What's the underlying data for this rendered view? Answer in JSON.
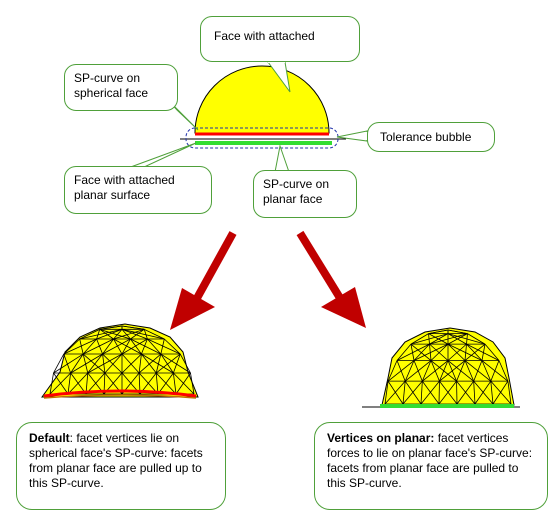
{
  "callouts": {
    "face_with_attached": "Face with attached",
    "sp_curve_spherical_line1": "SP-curve on",
    "sp_curve_spherical_line2": "spherical face",
    "tolerance_bubble": "Tolerance bubble",
    "face_planar_line1": "Face with attached",
    "face_planar_line2": "planar surface",
    "sp_curve_planar_line1": "SP-curve on",
    "sp_curve_planar_line2": "planar face"
  },
  "left_result": {
    "bold_label": "Default",
    "text_after_bold": ": facet vertices lie on spherical face's SP-curve: facets from planar face are pulled up to this SP-curve."
  },
  "right_result": {
    "bold_label": "Vertices on planar:",
    "text_after_bold": " facet vertices forces to lie on planar face's SP-curve: facets from planar face are pulled to this SP-curve."
  },
  "colors": {
    "dome_fill": "#ffff00",
    "sp_curve_spherical": "#ff0000",
    "sp_curve_planar": "#33dd33",
    "arrow": "#c00000",
    "callout_border": "#4fa03a",
    "tolerance_bubble": "#2233aa"
  }
}
